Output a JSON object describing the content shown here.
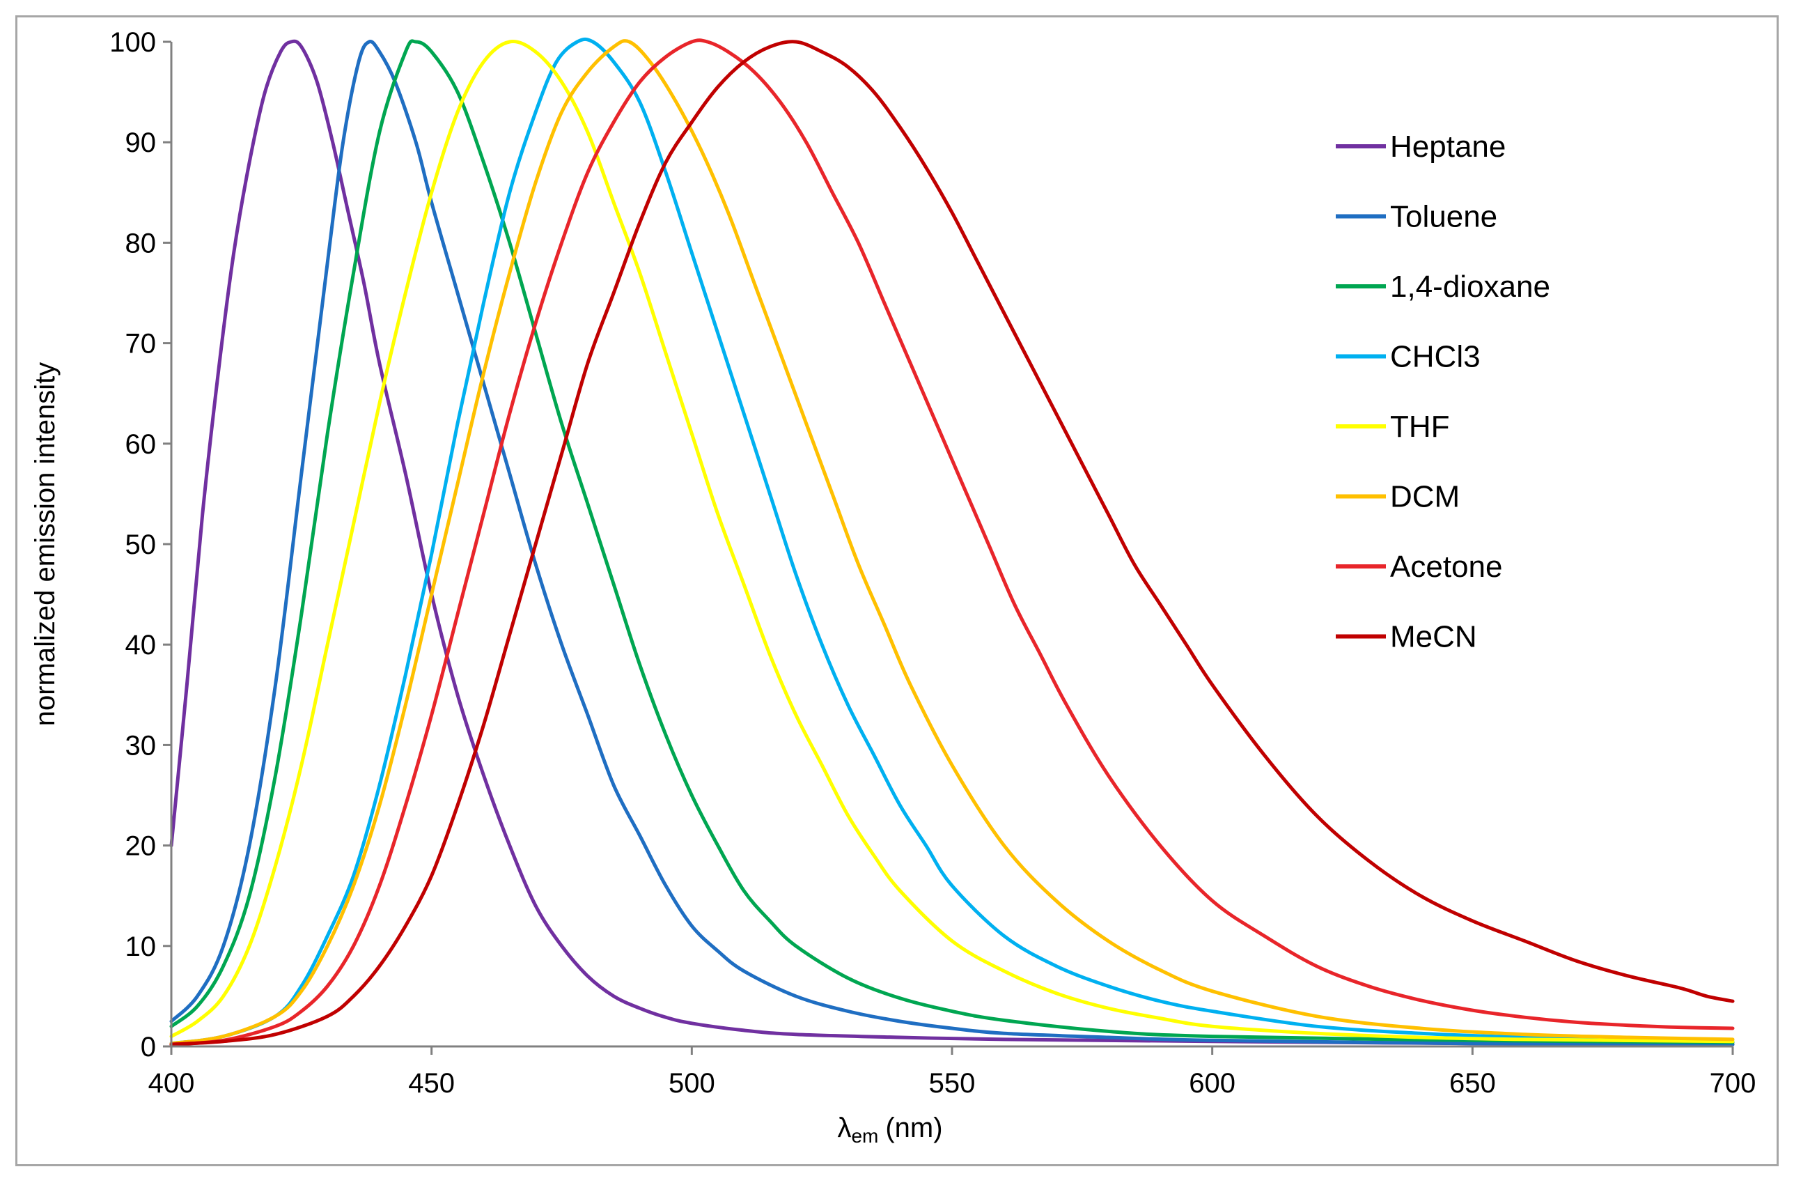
{
  "chart_data": {
    "type": "line",
    "title": "",
    "xlabel": "λem (nm)",
    "xlabel_parts": {
      "symbol": "λ",
      "subscript": "em",
      "unit": "(nm)"
    },
    "ylabel": "normalized emission intensity",
    "xlim": [
      400,
      700
    ],
    "ylim": [
      0,
      100
    ],
    "xticks": [
      400,
      450,
      500,
      550,
      600,
      650,
      700
    ],
    "yticks": [
      0,
      10,
      20,
      30,
      40,
      50,
      60,
      70,
      80,
      90,
      100
    ],
    "grid": false,
    "legend_position": "right",
    "series": [
      {
        "name": "Heptane",
        "color": "#7030a0",
        "points": [
          [
            400,
            20
          ],
          [
            403,
            36
          ],
          [
            406,
            53
          ],
          [
            409,
            67
          ],
          [
            412,
            79
          ],
          [
            415,
            88
          ],
          [
            418,
            95
          ],
          [
            421,
            99
          ],
          [
            423,
            100
          ],
          [
            425,
            99.5
          ],
          [
            428,
            96
          ],
          [
            431,
            90
          ],
          [
            434,
            83
          ],
          [
            437,
            76
          ],
          [
            440,
            68
          ],
          [
            445,
            57
          ],
          [
            450,
            45
          ],
          [
            455,
            35
          ],
          [
            460,
            27
          ],
          [
            465,
            20
          ],
          [
            470,
            14
          ],
          [
            475,
            10
          ],
          [
            480,
            7
          ],
          [
            485,
            5
          ],
          [
            490,
            3.8
          ],
          [
            495,
            2.9
          ],
          [
            500,
            2.3
          ],
          [
            510,
            1.6
          ],
          [
            520,
            1.2
          ],
          [
            540,
            0.9
          ],
          [
            560,
            0.7
          ],
          [
            600,
            0.5
          ],
          [
            650,
            0.3
          ],
          [
            700,
            0.2
          ]
        ]
      },
      {
        "name": "Toluene",
        "color": "#1f6ec2",
        "points": [
          [
            400,
            2.5
          ],
          [
            405,
            5
          ],
          [
            410,
            10
          ],
          [
            415,
            20
          ],
          [
            420,
            36
          ],
          [
            425,
            57
          ],
          [
            430,
            78
          ],
          [
            433,
            90
          ],
          [
            436,
            98
          ],
          [
            438,
            100
          ],
          [
            440,
            99
          ],
          [
            443,
            96
          ],
          [
            447,
            90
          ],
          [
            450,
            84
          ],
          [
            455,
            75
          ],
          [
            460,
            66
          ],
          [
            465,
            57
          ],
          [
            470,
            48
          ],
          [
            475,
            40
          ],
          [
            480,
            33
          ],
          [
            485,
            26
          ],
          [
            490,
            21
          ],
          [
            495,
            16
          ],
          [
            500,
            12
          ],
          [
            505,
            9.5
          ],
          [
            510,
            7.5
          ],
          [
            520,
            5
          ],
          [
            530,
            3.5
          ],
          [
            540,
            2.5
          ],
          [
            550,
            1.8
          ],
          [
            560,
            1.3
          ],
          [
            580,
            0.9
          ],
          [
            600,
            0.6
          ],
          [
            650,
            0.3
          ],
          [
            700,
            0.2
          ]
        ]
      },
      {
        "name": "1,4-dioxane",
        "color": "#00a651",
        "points": [
          [
            400,
            2
          ],
          [
            405,
            4
          ],
          [
            410,
            8
          ],
          [
            415,
            15
          ],
          [
            420,
            27
          ],
          [
            425,
            43
          ],
          [
            430,
            61
          ],
          [
            435,
            77
          ],
          [
            440,
            91
          ],
          [
            445,
            99
          ],
          [
            447,
            100
          ],
          [
            450,
            99
          ],
          [
            455,
            95
          ],
          [
            460,
            88
          ],
          [
            465,
            80
          ],
          [
            470,
            71
          ],
          [
            475,
            62
          ],
          [
            480,
            54
          ],
          [
            485,
            46
          ],
          [
            490,
            38
          ],
          [
            495,
            31
          ],
          [
            500,
            25
          ],
          [
            505,
            20
          ],
          [
            510,
            15.5
          ],
          [
            515,
            12.5
          ],
          [
            520,
            10
          ],
          [
            530,
            6.8
          ],
          [
            540,
            4.8
          ],
          [
            550,
            3.5
          ],
          [
            560,
            2.6
          ],
          [
            580,
            1.5
          ],
          [
            600,
            1
          ],
          [
            650,
            0.6
          ],
          [
            700,
            0.4
          ]
        ]
      },
      {
        "name": "CHCl3",
        "color": "#00b0f0",
        "points": [
          [
            400,
            0.3
          ],
          [
            410,
            1
          ],
          [
            420,
            3
          ],
          [
            425,
            6
          ],
          [
            430,
            11
          ],
          [
            435,
            17
          ],
          [
            440,
            26
          ],
          [
            445,
            37
          ],
          [
            450,
            49
          ],
          [
            455,
            62
          ],
          [
            460,
            74
          ],
          [
            465,
            85
          ],
          [
            470,
            93
          ],
          [
            474,
            98
          ],
          [
            478,
            100
          ],
          [
            481,
            100
          ],
          [
            485,
            98
          ],
          [
            490,
            94
          ],
          [
            495,
            87
          ],
          [
            500,
            79
          ],
          [
            505,
            71
          ],
          [
            510,
            63
          ],
          [
            515,
            55
          ],
          [
            520,
            47
          ],
          [
            525,
            40
          ],
          [
            530,
            34
          ],
          [
            535,
            29
          ],
          [
            540,
            24
          ],
          [
            545,
            20
          ],
          [
            550,
            16
          ],
          [
            560,
            11
          ],
          [
            570,
            8
          ],
          [
            580,
            6
          ],
          [
            590,
            4.5
          ],
          [
            600,
            3.5
          ],
          [
            620,
            2
          ],
          [
            640,
            1.3
          ],
          [
            660,
            0.9
          ],
          [
            680,
            0.7
          ],
          [
            700,
            0.5
          ]
        ]
      },
      {
        "name": "THF",
        "color": "#ffff00",
        "points": [
          [
            400,
            1
          ],
          [
            405,
            2.5
          ],
          [
            410,
            5
          ],
          [
            415,
            10
          ],
          [
            420,
            18
          ],
          [
            425,
            28
          ],
          [
            430,
            40
          ],
          [
            435,
            52
          ],
          [
            440,
            64
          ],
          [
            445,
            75
          ],
          [
            450,
            85
          ],
          [
            455,
            93
          ],
          [
            460,
            98
          ],
          [
            465,
            100
          ],
          [
            470,
            99
          ],
          [
            475,
            96
          ],
          [
            480,
            91
          ],
          [
            485,
            84
          ],
          [
            490,
            77
          ],
          [
            495,
            69
          ],
          [
            500,
            61
          ],
          [
            505,
            53
          ],
          [
            510,
            46
          ],
          [
            515,
            39
          ],
          [
            520,
            33
          ],
          [
            525,
            28
          ],
          [
            530,
            23
          ],
          [
            535,
            19
          ],
          [
            540,
            15.5
          ],
          [
            550,
            10.5
          ],
          [
            560,
            7.5
          ],
          [
            570,
            5.3
          ],
          [
            580,
            3.8
          ],
          [
            590,
            2.8
          ],
          [
            600,
            2
          ],
          [
            620,
            1.3
          ],
          [
            640,
            0.9
          ],
          [
            660,
            0.7
          ],
          [
            700,
            0.5
          ]
        ]
      },
      {
        "name": "DCM",
        "color": "#ffc000",
        "points": [
          [
            400,
            0.3
          ],
          [
            410,
            1
          ],
          [
            420,
            3
          ],
          [
            425,
            5.5
          ],
          [
            430,
            10
          ],
          [
            435,
            16
          ],
          [
            440,
            24
          ],
          [
            445,
            34
          ],
          [
            450,
            45
          ],
          [
            455,
            56
          ],
          [
            460,
            67
          ],
          [
            465,
            77
          ],
          [
            470,
            86
          ],
          [
            475,
            93
          ],
          [
            480,
            97
          ],
          [
            485,
            99.5
          ],
          [
            488,
            100
          ],
          [
            492,
            98
          ],
          [
            497,
            94
          ],
          [
            502,
            89
          ],
          [
            507,
            83
          ],
          [
            512,
            76
          ],
          [
            517,
            69
          ],
          [
            522,
            62
          ],
          [
            527,
            55
          ],
          [
            532,
            48
          ],
          [
            537,
            42
          ],
          [
            542,
            36
          ],
          [
            550,
            28
          ],
          [
            560,
            20
          ],
          [
            570,
            14.5
          ],
          [
            580,
            10.5
          ],
          [
            590,
            7.6
          ],
          [
            600,
            5.5
          ],
          [
            620,
            3
          ],
          [
            640,
            1.8
          ],
          [
            660,
            1.2
          ],
          [
            680,
            0.9
          ],
          [
            700,
            0.7
          ]
        ]
      },
      {
        "name": "Acetone",
        "color": "#e8252a",
        "points": [
          [
            400,
            0.2
          ],
          [
            410,
            0.6
          ],
          [
            420,
            2
          ],
          [
            425,
            3.5
          ],
          [
            430,
            6
          ],
          [
            435,
            10
          ],
          [
            440,
            16
          ],
          [
            445,
            24
          ],
          [
            450,
            33
          ],
          [
            455,
            43
          ],
          [
            460,
            53
          ],
          [
            465,
            63
          ],
          [
            470,
            72
          ],
          [
            475,
            80
          ],
          [
            480,
            87
          ],
          [
            485,
            92
          ],
          [
            490,
            96
          ],
          [
            495,
            98.5
          ],
          [
            500,
            100
          ],
          [
            503,
            100
          ],
          [
            507,
            99
          ],
          [
            512,
            97
          ],
          [
            517,
            94
          ],
          [
            522,
            90
          ],
          [
            527,
            85
          ],
          [
            532,
            80
          ],
          [
            537,
            74
          ],
          [
            542,
            68
          ],
          [
            547,
            62
          ],
          [
            552,
            56
          ],
          [
            557,
            50
          ],
          [
            562,
            44
          ],
          [
            567,
            39
          ],
          [
            572,
            34
          ],
          [
            580,
            27
          ],
          [
            590,
            20
          ],
          [
            600,
            14.5
          ],
          [
            610,
            11
          ],
          [
            620,
            8
          ],
          [
            630,
            6
          ],
          [
            640,
            4.6
          ],
          [
            650,
            3.6
          ],
          [
            660,
            2.9
          ],
          [
            670,
            2.4
          ],
          [
            680,
            2.1
          ],
          [
            690,
            1.9
          ],
          [
            700,
            1.8
          ]
        ]
      },
      {
        "name": "MeCN",
        "color": "#c00000",
        "points": [
          [
            400,
            0.2
          ],
          [
            410,
            0.5
          ],
          [
            420,
            1.2
          ],
          [
            430,
            3
          ],
          [
            435,
            5
          ],
          [
            440,
            8
          ],
          [
            445,
            12
          ],
          [
            450,
            17
          ],
          [
            455,
            24
          ],
          [
            460,
            32
          ],
          [
            465,
            41
          ],
          [
            470,
            50
          ],
          [
            475,
            59
          ],
          [
            480,
            68
          ],
          [
            485,
            75
          ],
          [
            490,
            82
          ],
          [
            495,
            88
          ],
          [
            500,
            92
          ],
          [
            505,
            95.5
          ],
          [
            510,
            98
          ],
          [
            515,
            99.5
          ],
          [
            520,
            100
          ],
          [
            525,
            99
          ],
          [
            530,
            97.5
          ],
          [
            535,
            95
          ],
          [
            540,
            91.5
          ],
          [
            545,
            87.5
          ],
          [
            550,
            83
          ],
          [
            555,
            78
          ],
          [
            560,
            73
          ],
          [
            565,
            68
          ],
          [
            570,
            63
          ],
          [
            575,
            58
          ],
          [
            580,
            53
          ],
          [
            585,
            48
          ],
          [
            590,
            44
          ],
          [
            595,
            40
          ],
          [
            600,
            36
          ],
          [
            610,
            29
          ],
          [
            620,
            23
          ],
          [
            630,
            18.5
          ],
          [
            640,
            15
          ],
          [
            650,
            12.5
          ],
          [
            660,
            10.5
          ],
          [
            670,
            8.5
          ],
          [
            680,
            7
          ],
          [
            690,
            5.8
          ],
          [
            695,
            5
          ],
          [
            700,
            4.5
          ]
        ]
      }
    ]
  }
}
